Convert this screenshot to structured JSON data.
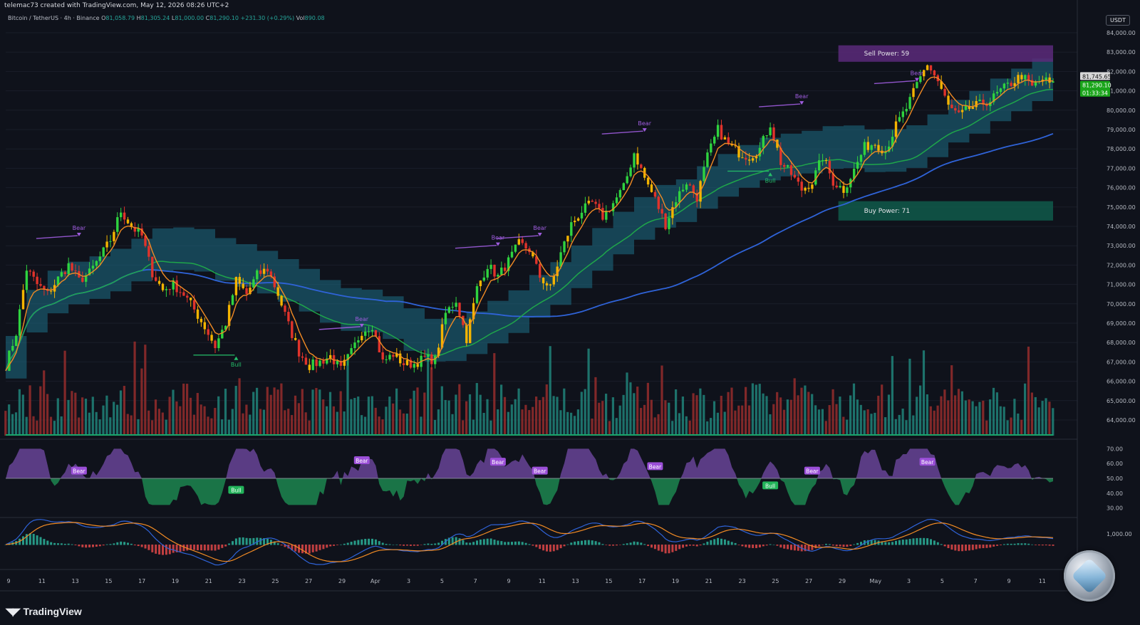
{
  "header": {
    "credit": "telemac73 created with TradingView.com, May 12, 2026 08:26 UTC+2",
    "symbol": "Bitcoin / TetherUS · 4h · Binance",
    "open_label": "O",
    "open": "81,058.79",
    "high_label": "H",
    "high": "81,305.24",
    "low_label": "L",
    "low": "81,000.00",
    "close_label": "C",
    "close": "81,290.10",
    "change": "+231.30 (+0.29%)",
    "volume_label": "Vol",
    "volume": "890.08",
    "currency": "USDT"
  },
  "branding": {
    "name": "TradingView",
    "logo_icon": "tradingview-logo-icon",
    "watermark_icon": "coin-badge-icon"
  },
  "colors": {
    "background": "#0f121b",
    "bull": "#2fd33f",
    "bear": "#e0332b",
    "candle_mid": "#f4b400",
    "ema_fast": "#f28b24",
    "ma_mid": "#1fa64a",
    "ma_slow": "#2f63d8",
    "cloud": "#1e6e85",
    "volume_up": "#1f7d74",
    "volume_down": "#8e2b2b",
    "sell_zone": "#5b2a7a",
    "buy_zone": "#0f5a4a",
    "divergence_bear": "#a05de0",
    "divergence_bull": "#25c06a",
    "price_tag_last": "#d8d8d8",
    "price_tag_close": "#1aa51a"
  },
  "chart_data": {
    "type": "candlestick",
    "title": "",
    "xlabel": "",
    "ylabel": "",
    "ylim": [
      63500,
      84500
    ],
    "y_ticks": [
      "84,000.00",
      "83,000.00",
      "82,000.00",
      "81,000.00",
      "80,000.00",
      "79,000.00",
      "78,000.00",
      "77,000.00",
      "76,000.00",
      "75,000.00",
      "74,000.00",
      "73,000.00",
      "72,000.00",
      "71,000.00",
      "70,000.00",
      "69,000.00",
      "68,000.00",
      "67,000.00",
      "66,000.00",
      "65,000.00",
      "64,000.00"
    ],
    "x_labels": [
      "9",
      "11",
      "13",
      "15",
      "17",
      "19",
      "21",
      "23",
      "25",
      "27",
      "29",
      "Apr",
      "3",
      "5",
      "7",
      "9",
      "11",
      "13",
      "15",
      "17",
      "19",
      "21",
      "23",
      "25",
      "27",
      "29",
      "May",
      "3",
      "5",
      "7",
      "9",
      "11"
    ],
    "price_path": [
      [
        0,
        66800
      ],
      [
        1,
        68500
      ],
      [
        2,
        71800
      ],
      [
        3,
        71000
      ],
      [
        4,
        70500
      ],
      [
        5,
        71300
      ],
      [
        6,
        72000
      ],
      [
        7,
        71200
      ],
      [
        8,
        71600
      ],
      [
        9,
        72400
      ],
      [
        10,
        73300
      ],
      [
        11,
        74800
      ],
      [
        12,
        74000
      ],
      [
        13,
        73500
      ],
      [
        14,
        71600
      ],
      [
        15,
        70700
      ],
      [
        16,
        71000
      ],
      [
        17,
        70500
      ],
      [
        18,
        69700
      ],
      [
        19,
        68800
      ],
      [
        20,
        67800
      ],
      [
        21,
        69000
      ],
      [
        22,
        71200
      ],
      [
        23,
        70500
      ],
      [
        24,
        71500
      ],
      [
        25,
        71800
      ],
      [
        26,
        70500
      ],
      [
        27,
        68900
      ],
      [
        28,
        67500
      ],
      [
        29,
        66800
      ],
      [
        30,
        67000
      ],
      [
        31,
        67300
      ],
      [
        32,
        66600
      ],
      [
        33,
        67500
      ],
      [
        34,
        68600
      ],
      [
        35,
        68900
      ],
      [
        36,
        67000
      ],
      [
        37,
        67400
      ],
      [
        38,
        66900
      ],
      [
        39,
        66900
      ],
      [
        40,
        67200
      ],
      [
        41,
        67100
      ],
      [
        42,
        69500
      ],
      [
        43,
        70200
      ],
      [
        44,
        68200
      ],
      [
        45,
        70800
      ],
      [
        46,
        72000
      ],
      [
        47,
        71400
      ],
      [
        48,
        72200
      ],
      [
        49,
        73100
      ],
      [
        50,
        72800
      ],
      [
        51,
        71400
      ],
      [
        52,
        70800
      ],
      [
        53,
        72600
      ],
      [
        54,
        74100
      ],
      [
        55,
        74800
      ],
      [
        56,
        75200
      ],
      [
        57,
        74500
      ],
      [
        58,
        75200
      ],
      [
        59,
        76000
      ],
      [
        60,
        77800
      ],
      [
        61,
        76500
      ],
      [
        62,
        75400
      ],
      [
        63,
        74100
      ],
      [
        64,
        75400
      ],
      [
        65,
        76300
      ],
      [
        66,
        75500
      ],
      [
        67,
        77600
      ],
      [
        68,
        79000
      ],
      [
        69,
        78200
      ],
      [
        70,
        77800
      ],
      [
        71,
        77600
      ],
      [
        72,
        78000
      ],
      [
        73,
        79300
      ],
      [
        74,
        77300
      ],
      [
        75,
        76700
      ],
      [
        76,
        75900
      ],
      [
        77,
        76300
      ],
      [
        78,
        77600
      ],
      [
        79,
        76300
      ],
      [
        80,
        75900
      ],
      [
        81,
        76900
      ],
      [
        82,
        78100
      ],
      [
        83,
        78300
      ],
      [
        84,
        77900
      ],
      [
        85,
        79200
      ],
      [
        86,
        80100
      ],
      [
        87,
        81300
      ],
      [
        88,
        82400
      ],
      [
        89,
        81500
      ],
      [
        90,
        80200
      ],
      [
        91,
        79700
      ],
      [
        92,
        80100
      ],
      [
        93,
        80300
      ],
      [
        94,
        80500
      ],
      [
        95,
        81000
      ],
      [
        96,
        81400
      ],
      [
        97,
        81800
      ],
      [
        98,
        81200
      ],
      [
        99,
        81600
      ],
      [
        100,
        81290
      ]
    ],
    "last_price": "81,745.65",
    "close_price": "81,290.10",
    "countdown": "01:33:34",
    "annotations": [
      {
        "text": "Sell Power: 59",
        "y_range": [
          82500,
          83350
        ],
        "x_range": [
          79.5,
          100
        ]
      },
      {
        "text": "Buy Power: 71",
        "y_range": [
          74300,
          75300
        ],
        "x_range": [
          79.5,
          100
        ]
      },
      {
        "text": "Bear",
        "x": 7,
        "y": 73300
      },
      {
        "text": "Bull",
        "x": 22,
        "y": 67500
      },
      {
        "text": "Bear",
        "x": 34,
        "y": 68600
      },
      {
        "text": "Bear",
        "x": 47,
        "y": 72800
      },
      {
        "text": "Bear",
        "x": 51,
        "y": 73300
      },
      {
        "text": "Bear",
        "x": 61,
        "y": 78700
      },
      {
        "text": "Bull",
        "x": 73,
        "y": 77000
      },
      {
        "text": "Bear",
        "x": 76,
        "y": 80100
      },
      {
        "text": "Bear",
        "x": 87,
        "y": 81300
      }
    ],
    "oscillator": {
      "y_ticks": [
        "70.00",
        "60.00",
        "50.00",
        "40.00",
        "30.00"
      ],
      "ylim": [
        25,
        75
      ],
      "labels": [
        {
          "text": "Bear",
          "x": 7,
          "y": 55
        },
        {
          "text": "Bull",
          "x": 22,
          "y": 42
        },
        {
          "text": "Bear",
          "x": 34,
          "y": 62
        },
        {
          "text": "Bear",
          "x": 47,
          "y": 61
        },
        {
          "text": "Bear",
          "x": 51,
          "y": 55
        },
        {
          "text": "Bear",
          "x": 62,
          "y": 58
        },
        {
          "text": "Bull",
          "x": 73,
          "y": 45
        },
        {
          "text": "Bear",
          "x": 77,
          "y": 55
        },
        {
          "text": "Bear",
          "x": 88,
          "y": 61
        }
      ]
    },
    "macd": {
      "y_ticks": [
        "1,000.00"
      ]
    }
  }
}
